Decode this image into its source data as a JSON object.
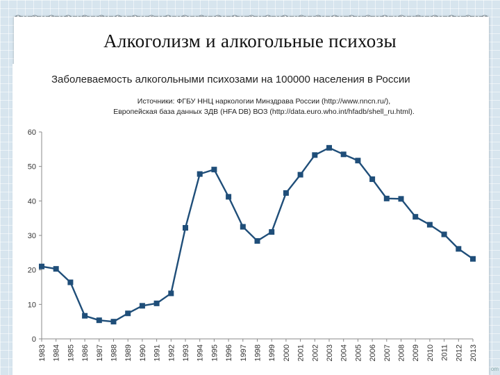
{
  "slide": {
    "title": "Алкоголизм и алкогольные психозы",
    "corner": "om"
  },
  "colors": {
    "series": "#1f4e79",
    "background_grid": "#d7e5ee"
  },
  "chart_data": {
    "type": "line",
    "title": "Заболеваемость алкогольными психозами на 100000 населения в России",
    "source_lines": [
      "Источники: ФГБУ ННЦ наркологии Минздрава России (http://www.nncn.ru/),",
      "Европейская база данных ЗДВ (HFA DB) ВОЗ (http://data.euro.who.int/hfadb/shell_ru.html)."
    ],
    "x": [
      "1983",
      "1984",
      "1985",
      "1986",
      "1987",
      "1988",
      "1989",
      "1990",
      "1991",
      "1992",
      "1993",
      "1994",
      "1995",
      "1996",
      "1997",
      "1998",
      "1999",
      "2000",
      "2001",
      "2002",
      "2003",
      "2004",
      "2005",
      "2006",
      "2007",
      "2008",
      "2009",
      "2010",
      "2011",
      "2012",
      "2013"
    ],
    "y_ticks": [
      0,
      10,
      20,
      30,
      40,
      50,
      60
    ],
    "ylim": [
      0,
      60
    ],
    "series": [
      {
        "values": [
          21,
          20.3,
          16.4,
          6.7,
          5.4,
          5.0,
          7.4,
          9.6,
          10.3,
          13.2,
          32.2,
          47.8,
          49.1,
          41.2,
          32.5,
          28.4,
          31.0,
          42.3,
          47.6,
          53.3,
          55.4,
          53.5,
          51.7,
          46.3,
          40.7,
          40.6,
          35.4,
          33.1,
          30.3,
          26.1,
          23.2
        ]
      }
    ],
    "grid": false,
    "legend": "none"
  }
}
